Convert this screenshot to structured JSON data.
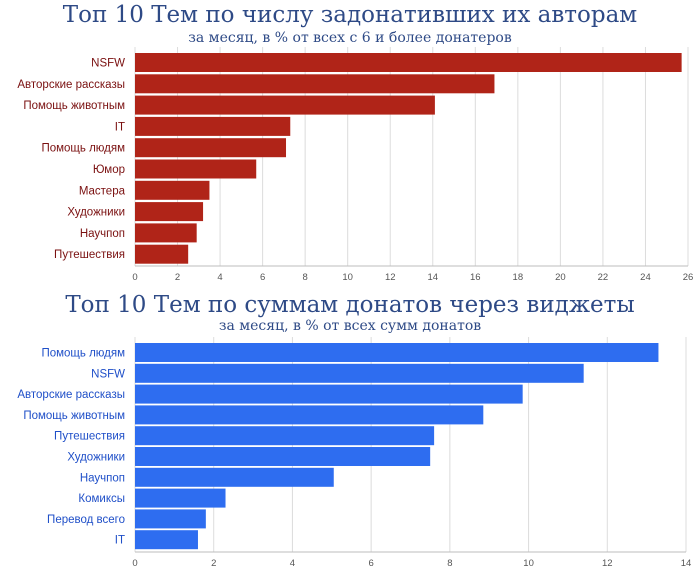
{
  "colors": {
    "title": "#2e4a86",
    "chart1_bar": "#b02418",
    "chart1_label": "#7a1010",
    "chart2_bar": "#2e6df0",
    "chart2_label": "#1f4fc8",
    "grid": "#dcdcdc"
  },
  "chart_data": [
    {
      "type": "bar",
      "orientation": "horizontal",
      "title": "Топ 10 Тем по числу задонативших их авторам",
      "subtitle": "за месяц, в % от всех с 6 и более донатеров",
      "categories": [
        "NSFW",
        "Авторские рассказы",
        "Помощь животным",
        "IT",
        "Помощь людям",
        "Юмор",
        "Мастера",
        "Художники",
        "Научпоп",
        "Путешествия"
      ],
      "values": [
        25.7,
        16.9,
        14.1,
        7.3,
        7.1,
        5.7,
        3.5,
        3.2,
        2.9,
        2.5
      ],
      "xlim": [
        0,
        26
      ],
      "xticks": [
        "0",
        "2",
        "4",
        "6",
        "8",
        "10",
        "12",
        "14",
        "16",
        "18",
        "20",
        "22",
        "24",
        "26"
      ],
      "grid": true
    },
    {
      "type": "bar",
      "orientation": "horizontal",
      "title": "Топ 10 Тем по суммам донатов через виджеты",
      "subtitle": "за месяц, в % от всех сумм донатов",
      "categories": [
        "Помощь людям",
        "NSFW",
        "Авторские рассказы",
        "Помощь животным",
        "Путешествия",
        "Художники",
        "Научпоп",
        "Комиксы",
        "Перевод всего",
        "IT"
      ],
      "values": [
        13.3,
        11.4,
        9.85,
        8.85,
        7.6,
        7.5,
        5.05,
        2.3,
        1.8,
        1.6
      ],
      "xlim": [
        0,
        14
      ],
      "xticks": [
        "0",
        "2",
        "4",
        "6",
        "8",
        "10",
        "12",
        "14"
      ],
      "grid": true
    }
  ]
}
